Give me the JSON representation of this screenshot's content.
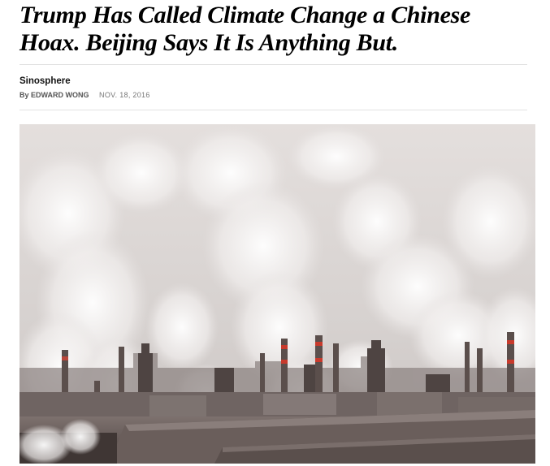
{
  "article": {
    "headline_line1": "Trump Has Called Climate Change a Chinese",
    "headline_line2": "Hoax. Beijing Says It Is Anything But.",
    "section": "Sinosphere",
    "by_prefix": "By",
    "author": "EDWARD WONG",
    "date": "NOV. 18, 2016"
  },
  "photo": {
    "subject": "industrial-smokestacks-photo"
  },
  "colors": {
    "sky": "#d8d4d3",
    "smoke": "#f2f0ef",
    "roof": "#6b5f5c",
    "stack_stripe": "#c83a2c"
  }
}
